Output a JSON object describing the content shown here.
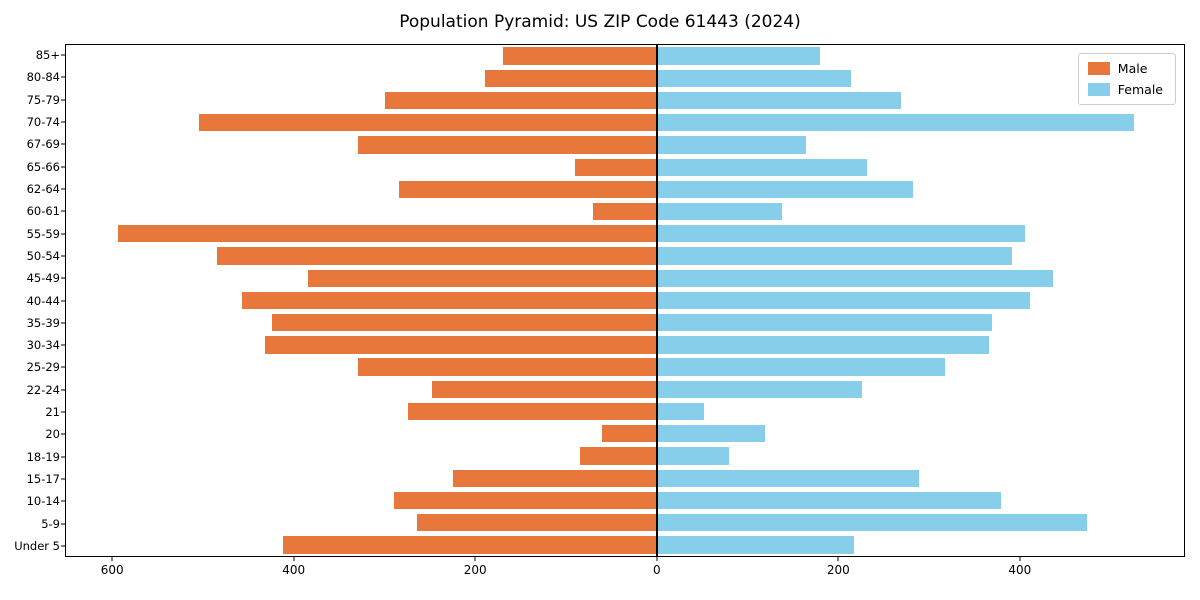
{
  "chart_data": {
    "type": "bar",
    "subtype": "population-pyramid",
    "title": "Population Pyramid: US ZIP Code 61443 (2024)",
    "xlabel": "",
    "ylabel": "",
    "grid": false,
    "legend": {
      "position": "upper right"
    },
    "categories_top_to_bottom": [
      "85+",
      "80-84",
      "75-79",
      "70-74",
      "67-69",
      "65-66",
      "62-64",
      "60-61",
      "55-59",
      "50-54",
      "45-49",
      "40-44",
      "35-39",
      "30-34",
      "25-29",
      "22-24",
      "21",
      "20",
      "18-19",
      "15-17",
      "10-14",
      "5-9",
      "Under 5"
    ],
    "series": [
      {
        "name": "Male",
        "side": "left",
        "color": "#e8773b",
        "values": [
          170,
          190,
          300,
          505,
          330,
          90,
          285,
          70,
          595,
          485,
          385,
          458,
          425,
          432,
          330,
          248,
          275,
          60,
          85,
          225,
          290,
          265,
          412
        ]
      },
      {
        "name": "Female",
        "side": "right",
        "color": "#87ceeb",
        "values": [
          180,
          215,
          270,
          527,
          165,
          232,
          283,
          138,
          407,
          392,
          437,
          412,
          370,
          367,
          318,
          227,
          52,
          120,
          80,
          290,
          380,
          475,
          218
        ]
      }
    ],
    "x_axis": {
      "left_max": 652,
      "right_max": 582,
      "ticks": [
        {
          "label": "600",
          "side": "left",
          "value": 600
        },
        {
          "label": "400",
          "side": "left",
          "value": 400
        },
        {
          "label": "200",
          "side": "left",
          "value": 200
        },
        {
          "label": "0",
          "side": "left",
          "value": 0
        },
        {
          "label": "200",
          "side": "right",
          "value": 200
        },
        {
          "label": "400",
          "side": "right",
          "value": 400
        }
      ]
    }
  }
}
